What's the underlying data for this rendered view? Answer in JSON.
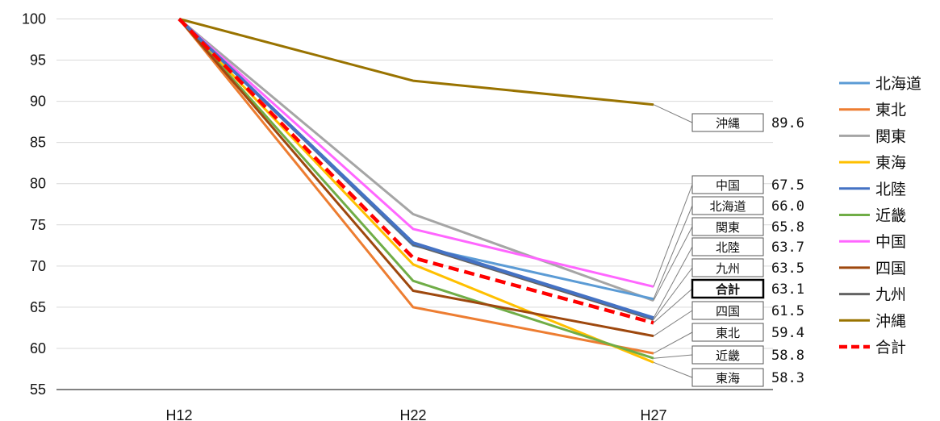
{
  "chart_data": {
    "type": "line",
    "categories": [
      "H12",
      "H22",
      "H27"
    ],
    "ylim": [
      55,
      100
    ],
    "yticks": [
      55,
      60,
      65,
      70,
      75,
      80,
      85,
      90,
      95,
      100
    ],
    "grid": true,
    "legend_position": "right",
    "series": [
      {
        "name": "北海道",
        "color": "#5B9BD5",
        "values": [
          100,
          72.5,
          66.0
        ]
      },
      {
        "name": "東北",
        "color": "#ED7D31",
        "values": [
          100,
          65.0,
          59.4
        ]
      },
      {
        "name": "関東",
        "color": "#A5A5A5",
        "values": [
          100,
          76.3,
          65.8
        ]
      },
      {
        "name": "東海",
        "color": "#FFC000",
        "values": [
          100,
          70.2,
          58.3
        ]
      },
      {
        "name": "北陸",
        "color": "#4472C4",
        "values": [
          100,
          72.8,
          63.7
        ]
      },
      {
        "name": "近畿",
        "color": "#70AD47",
        "values": [
          100,
          68.2,
          58.8
        ]
      },
      {
        "name": "中国",
        "color": "#FF66FF",
        "values": [
          100,
          74.5,
          67.5
        ]
      },
      {
        "name": "四国",
        "color": "#9E480E",
        "values": [
          100,
          67.0,
          61.5
        ]
      },
      {
        "name": "九州",
        "color": "#636363",
        "values": [
          100,
          72.6,
          63.5
        ]
      },
      {
        "name": "沖縄",
        "color": "#997300",
        "values": [
          100,
          92.5,
          89.6
        ]
      },
      {
        "name": "合計",
        "color": "#FF0000",
        "dashed": true,
        "values": [
          100,
          71.0,
          63.1
        ]
      }
    ],
    "end_labels": [
      {
        "name": "沖縄",
        "value": "89.6"
      },
      {
        "name": "中国",
        "value": "67.5"
      },
      {
        "name": "北海道",
        "value": "66.0"
      },
      {
        "name": "関東",
        "value": "65.8"
      },
      {
        "name": "北陸",
        "value": "63.7"
      },
      {
        "name": "九州",
        "value": "63.5"
      },
      {
        "name": "合計",
        "value": "63.1",
        "bold": true
      },
      {
        "name": "四国",
        "value": "61.5"
      },
      {
        "name": "東北",
        "value": "59.4"
      },
      {
        "name": "近畿",
        "value": "58.8"
      },
      {
        "name": "東海",
        "value": "58.3"
      }
    ]
  }
}
